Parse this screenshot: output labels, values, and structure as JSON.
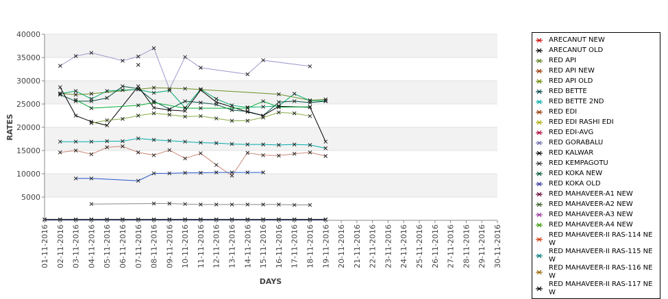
{
  "chart_data": {
    "type": "line",
    "xlabel": "DAYS",
    "ylabel": "RATES",
    "ylim": [
      0,
      40000
    ],
    "y_ticks": [
      "5000",
      "10000",
      "15000",
      "20000",
      "25000",
      "30000",
      "35000",
      "40000"
    ],
    "categories": [
      "01-11-2016",
      "02-11-2016",
      "03-11-2016",
      "04-11-2016",
      "05-11-2016",
      "06-11-2016",
      "07-11-2016",
      "08-11-2016",
      "09-11-2016",
      "10-11-2016",
      "11-11-2016",
      "12-11-2016",
      "13-11-2016",
      "14-11-2016",
      "15-11-2016",
      "16-11-2016",
      "17-11-2016",
      "18-11-2016",
      "19-11-2016",
      "20-11-2016",
      "21-11-2016",
      "22-11-2016",
      "23-11-2016",
      "24-11-2016",
      "25-11-2016",
      "26-11-2016",
      "27-11-2016",
      "28-11-2016",
      "29-11-2016",
      "30-11-2016"
    ],
    "grid": "horizontal bands",
    "legend_position": "right",
    "legend": [
      {
        "name": "ARECANUT NEW",
        "color": "#cc0000"
      },
      {
        "name": "ARECANUT OLD",
        "color": "#000000"
      },
      {
        "name": "RED API",
        "color": "#5a7a1a"
      },
      {
        "name": "RED API NEW",
        "color": "#993300"
      },
      {
        "name": "RED API OLD",
        "color": "#668800"
      },
      {
        "name": "RED BETTE",
        "color": "#004444"
      },
      {
        "name": "RED BETTE 2ND",
        "color": "#00aaaa"
      },
      {
        "name": "RED EDI",
        "color": "#993300"
      },
      {
        "name": "RED EDI RASHI EDI",
        "color": "#aaaa00"
      },
      {
        "name": "RED EDI-AVG",
        "color": "#aa0033"
      },
      {
        "name": "RED GORABALU",
        "color": "#6666aa"
      },
      {
        "name": "RED KALWAR",
        "color": "#000000"
      },
      {
        "name": "RED KEMPAGOTU",
        "color": "#333333"
      },
      {
        "name": "RED KOKA NEW",
        "color": "#005533"
      },
      {
        "name": "RED KOKA OLD",
        "color": "#333399"
      },
      {
        "name": "RED MAHAVEER-A1 NEW",
        "color": "#660033"
      },
      {
        "name": "RED MAHAVEER-A2 NEW",
        "color": "#335522"
      },
      {
        "name": "RED MAHAVEER-A3 NEW",
        "color": "#993399"
      },
      {
        "name": "RED MAHAVEER-A4 NEW",
        "color": "#339900"
      },
      {
        "name": "RED MAHAVEER-II RAS-114 NEW",
        "color": "#cc3300"
      },
      {
        "name": "RED MAHAVEER-II RAS-115 NEW",
        "color": "#007777"
      },
      {
        "name": "RED MAHAVEER-II RAS-116 NEW",
        "color": "#996600"
      },
      {
        "name": "RED MAHAVEER-II RAS-117 NEW",
        "color": "#000000"
      }
    ],
    "series": [
      {
        "color": "#9999cc",
        "x": [
          1,
          2,
          3,
          5,
          6,
          7,
          8,
          9,
          10,
          13,
          14,
          17
        ],
        "y": [
          33200,
          35300,
          36000,
          34300,
          35200,
          37000,
          28200,
          35100,
          32800,
          31400,
          34400,
          33100
        ]
      },
      {
        "color": "#000000",
        "x": [
          6
        ],
        "y": [
          33400
        ]
      },
      {
        "color": "#6b8e23",
        "x": [
          1,
          2,
          3,
          7,
          9,
          15,
          17,
          18
        ],
        "y": [
          27300,
          27000,
          27200,
          28500,
          28300,
          27100,
          25800,
          26000
        ]
      },
      {
        "color": "#00a86b",
        "x": [
          1,
          2,
          3,
          4,
          5,
          6,
          7,
          8,
          9,
          10,
          11,
          12,
          13,
          14,
          15,
          16,
          17,
          18
        ],
        "y": [
          27200,
          27800,
          26100,
          27800,
          28000,
          28100,
          27400,
          27900,
          24200,
          28200,
          26100,
          24700,
          24300,
          24400,
          24600,
          27200,
          25700,
          25700
        ]
      },
      {
        "color": "#004d40",
        "x": [
          1,
          2,
          3,
          4,
          5,
          6,
          7,
          8,
          9,
          10,
          11,
          12,
          13,
          14,
          15,
          16,
          17,
          18
        ],
        "y": [
          27000,
          25600,
          25600,
          26300,
          28800,
          28300,
          25600,
          23900,
          25600,
          25300,
          24900,
          23700,
          23400,
          22500,
          25400,
          25600,
          25300,
          25600
        ]
      },
      {
        "color": "#000000",
        "x": [
          1,
          2,
          3,
          4,
          6,
          7,
          8,
          9,
          10,
          11,
          13,
          14,
          15,
          17,
          18
        ],
        "y": [
          28600,
          22500,
          21200,
          20400,
          28800,
          24200,
          23700,
          23500,
          28000,
          25400,
          23300,
          22500,
          24500,
          24300,
          16900
        ]
      },
      {
        "color": "#00aa33",
        "x": [
          2,
          3,
          6,
          7,
          9,
          10,
          13,
          14,
          15,
          17
        ],
        "y": [
          25900,
          24100,
          24700,
          25300,
          24100,
          24100,
          24100,
          25600,
          24300,
          24400
        ]
      },
      {
        "color": "#88aa44",
        "x": [
          3,
          4,
          5,
          6,
          7,
          8,
          9,
          10,
          11,
          12,
          13,
          14,
          15,
          16,
          17
        ],
        "y": [
          20900,
          21500,
          21800,
          22500,
          23000,
          22700,
          22300,
          22400,
          21900,
          21400,
          21400,
          22100,
          23200,
          23000,
          22400
        ]
      },
      {
        "color": "#00aaaa",
        "x": [
          1,
          2,
          3,
          4,
          5,
          6,
          7,
          8,
          9,
          10,
          11,
          12,
          13,
          14,
          15,
          16,
          17,
          18
        ],
        "y": [
          16900,
          16900,
          16900,
          17000,
          17000,
          17600,
          17300,
          17100,
          16900,
          16700,
          16600,
          16400,
          16300,
          16300,
          16200,
          16300,
          16200,
          15500
        ]
      },
      {
        "color": "#cc8877",
        "x": [
          1,
          2,
          3,
          4,
          5,
          6,
          7,
          8,
          9,
          10,
          11,
          12,
          13,
          14,
          15,
          16,
          17,
          18
        ],
        "y": [
          14600,
          15000,
          14200,
          15700,
          15900,
          14600,
          14000,
          15100,
          13300,
          14400,
          11900,
          9600,
          14500,
          14000,
          13900,
          14300,
          14600,
          13800
        ]
      },
      {
        "color": "#2255cc",
        "x": [
          2,
          3,
          6,
          7,
          8,
          9,
          10,
          11,
          12,
          13,
          14
        ],
        "y": [
          9000,
          9000,
          8500,
          10100,
          10100,
          10200,
          10200,
          10300,
          10300,
          10300,
          10300
        ]
      },
      {
        "color": "#888888",
        "x": [
          3,
          7,
          8,
          9,
          10,
          11,
          12,
          13,
          14,
          15,
          16,
          17
        ],
        "y": [
          3500,
          3600,
          3600,
          3500,
          3400,
          3400,
          3400,
          3400,
          3400,
          3400,
          3300,
          3300
        ]
      },
      {
        "color": "#000000",
        "x": [
          0,
          1,
          2,
          3,
          4,
          5,
          6,
          7,
          8,
          9,
          10,
          11,
          12,
          13,
          14,
          15,
          16,
          17,
          18
        ],
        "y": [
          200,
          200,
          200,
          200,
          200,
          200,
          200,
          200,
          200,
          200,
          200,
          200,
          200,
          200,
          200,
          200,
          200,
          200,
          200
        ]
      },
      {
        "color": "#1a237e",
        "x": [
          0,
          1,
          2,
          3,
          4,
          5,
          6,
          7,
          8,
          9,
          10,
          11,
          12,
          13,
          14,
          15,
          16,
          17,
          18
        ],
        "y": [
          100,
          100,
          100,
          100,
          100,
          100,
          100,
          100,
          100,
          100,
          100,
          100,
          100,
          100,
          100,
          100,
          100,
          100,
          100
        ]
      }
    ]
  }
}
